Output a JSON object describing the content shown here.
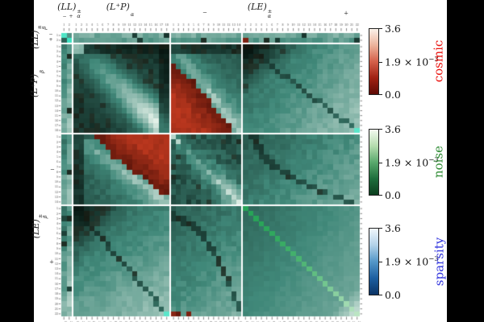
{
  "axes": {
    "top": {
      "groups": [
        {
          "pre": "(LL)",
          "sup": "±",
          "sub": "α"
        },
        {
          "pre": "(L⁺P)",
          "sup": "",
          "sub": "α"
        },
        {
          "pre": "(LE)",
          "sup": "±",
          "sub": "α"
        }
      ],
      "signs": [
        "−",
        "+",
        "−",
        "+"
      ]
    },
    "left": {
      "groups": [
        {
          "pre": "(LL)",
          "sup": "±",
          "sub": "β"
        },
        {
          "pre": "(L⁺P)",
          "sup": "",
          "sub": "β"
        },
        {
          "pre": "(LE)",
          "sup": "±",
          "sub": "β"
        }
      ],
      "signs": [
        "−",
        "+",
        "−",
        "+"
      ]
    }
  },
  "colorbars": [
    {
      "id": "cosmic",
      "label": "cosmic",
      "label_style": "color:#ea1410",
      "gradient_css": "background:linear-gradient(180deg,#faf1e9 0%,#ecb39b 25%,#d4604a 50%,#a02012 75%,#5e0a05 100%)",
      "ticks": {
        "max": "3.6",
        "mid_base": "1.9 × 10",
        "mid_exp": "−3",
        "min": "0.0"
      }
    },
    {
      "id": "noise",
      "label": "noise",
      "label_style": "color:#2e8b33",
      "gradient_css": "background:linear-gradient(180deg,#f3faf0 0%,#b5dcae 25%,#5aa96d 50%,#1e6e3c 75%,#0b3e1e 100%)",
      "ticks": {
        "max": "3.6",
        "mid_base": "1.9 × 10",
        "mid_exp": "−3",
        "min": "0.0"
      }
    },
    {
      "id": "sparsity",
      "label": "sparsity",
      "label_style": "color:#3134dd",
      "gradient_css": "background:linear-gradient(180deg,#f0f7fc 0%,#b3d2e8 25%,#5497c8 50%,#1d5fa0 75%,#0b3365 100%)",
      "ticks": {
        "max": "3.6",
        "mid_base": "1.9 × 10",
        "mid_exp": "−3",
        "min": "0.0"
      }
    }
  ],
  "chart_data": {
    "type": "heatmap",
    "description": "Block covariance/correlation matrix between bandpower groups (LL)±, (L⁺P) and (LE)± for rows (β) and columns (α); cell colors blend three component colormaps (cosmic=red, noise=green, sparsity=blue), shared value scale 0.0 → 1.9×10⁻³ → 3.6.",
    "matrix_size": 56,
    "scale": {
      "min": "0.0",
      "mid": "1.9 × 10⁻³",
      "max": "3.6"
    },
    "components": [
      "cosmic",
      "noise",
      "sparsity"
    ],
    "row_groups": [
      {
        "id": "LL",
        "label": "(LL)±β",
        "count": 2,
        "signs": [
          "−",
          "+"
        ],
        "ticks": [
          1,
          2
        ]
      },
      {
        "id": "LP",
        "label": "(L⁺P)β",
        "count": 18,
        "ticks": [
          1,
          2,
          3,
          4,
          5,
          6,
          7,
          8,
          9,
          10,
          11,
          12,
          13,
          14,
          15,
          16,
          17,
          18
        ]
      },
      {
        "id": "LEm",
        "label": "(LE)±β −",
        "count": 14,
        "ticks": [
          1,
          2,
          3,
          4,
          5,
          6,
          7,
          8,
          9,
          10,
          11,
          12,
          13,
          14
        ]
      },
      {
        "id": "LEp",
        "label": "(LE)±β +",
        "count": 22,
        "ticks": [
          1,
          2,
          3,
          4,
          5,
          6,
          7,
          8,
          9,
          10,
          11,
          12,
          13,
          14,
          15,
          16,
          17,
          18,
          19,
          20,
          21,
          22
        ]
      }
    ],
    "col_groups": [
      {
        "id": "LL",
        "label": "(LL)±α",
        "count": 2,
        "signs": [
          "−",
          "+"
        ],
        "ticks": [
          1,
          2
        ]
      },
      {
        "id": "LP",
        "label": "(L⁺P)α",
        "count": 18,
        "ticks": [
          1,
          2,
          3,
          4,
          5,
          6,
          7,
          8,
          9,
          10,
          11,
          12,
          13,
          14,
          15,
          16,
          17,
          18
        ]
      },
      {
        "id": "LEm",
        "label": "(LE)±α −",
        "count": 14,
        "ticks": [
          1,
          2,
          3,
          4,
          5,
          6,
          7,
          8,
          9,
          10,
          11,
          12,
          13,
          14
        ]
      },
      {
        "id": "LEp",
        "label": "(LE)±α +",
        "count": 22,
        "ticks": [
          1,
          2,
          3,
          4,
          5,
          6,
          7,
          8,
          9,
          10,
          11,
          12,
          13,
          14,
          15,
          16,
          17,
          18,
          19,
          20,
          21,
          22
        ]
      }
    ],
    "blocks": [
      {
        "row": "LL",
        "col": "LL",
        "pattern": "corner"
      },
      {
        "row": "LL",
        "col": "LP",
        "pattern": "band-row"
      },
      {
        "row": "LL",
        "col": "LEm",
        "pattern": "band-row"
      },
      {
        "row": "LL",
        "col": "LEp",
        "pattern": "band-row"
      },
      {
        "row": "LP",
        "col": "LL",
        "pattern": "band-col"
      },
      {
        "row": "LP",
        "col": "LP",
        "pattern": "diag-fan"
      },
      {
        "row": "LP",
        "col": "LEm",
        "pattern": "red-lower"
      },
      {
        "row": "LP",
        "col": "LEp",
        "pattern": "fan"
      },
      {
        "row": "LEm",
        "col": "LL",
        "pattern": "band-col"
      },
      {
        "row": "LEm",
        "col": "LP",
        "pattern": "red-upper"
      },
      {
        "row": "LEm",
        "col": "LEm",
        "pattern": "checker-diag"
      },
      {
        "row": "LEm",
        "col": "LEp",
        "pattern": "arc"
      },
      {
        "row": "LEp",
        "col": "LL",
        "pattern": "band-col"
      },
      {
        "row": "LEp",
        "col": "LP",
        "pattern": "fan-t"
      },
      {
        "row": "LEp",
        "col": "LEm",
        "pattern": "arc-t"
      },
      {
        "row": "LEp",
        "col": "LEp",
        "pattern": "smooth-diag"
      }
    ],
    "palette": {
      "teal_dark": "#081611",
      "teal_mid": "#41897a",
      "teal_light": "#ecf6ee",
      "cyan_bright": "#38e2c2",
      "red_dark": "#3c0a04",
      "red_bright": "#c23a20",
      "green_diag": "#27a457",
      "brown_dark": "#241107",
      "tick_color": "#333333",
      "background": "#ffffff",
      "frame_bars": "#000000"
    }
  }
}
